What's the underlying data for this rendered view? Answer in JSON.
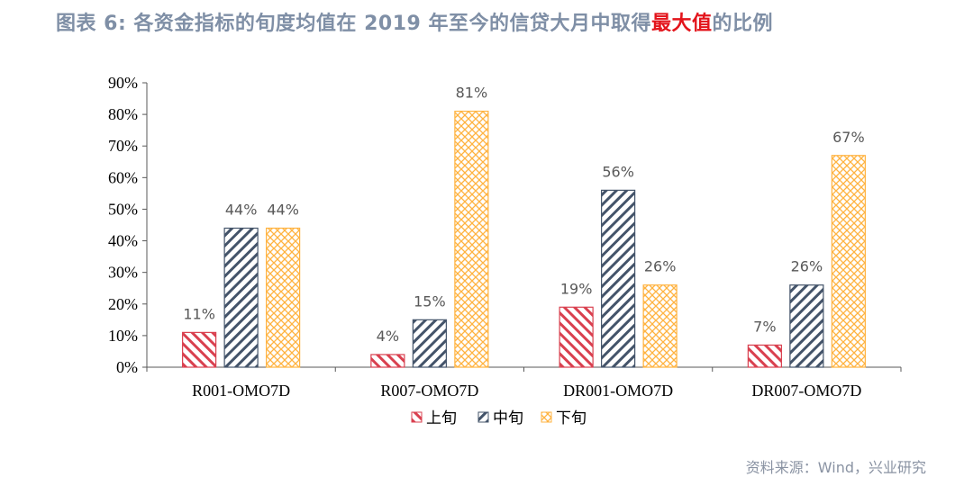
{
  "title": {
    "prefix": "图表 6:  各资金指标的旬度均值在 2019 年至今的信贷大月中取得",
    "highlight": "最大值",
    "suffix": "的比例"
  },
  "source": "资料来源：Wind，兴业研究",
  "chart_data": {
    "type": "bar",
    "categories": [
      "R001-OMO7D",
      "R007-OMO7D",
      "DR001-OMO7D",
      "DR007-OMO7D"
    ],
    "series": [
      {
        "name": "上旬",
        "values": [
          11,
          4,
          19,
          7
        ],
        "color": "#d9404f",
        "pattern": "diagonal-down"
      },
      {
        "name": "中旬",
        "values": [
          44,
          15,
          56,
          26
        ],
        "color": "#44546a",
        "pattern": "diagonal-up"
      },
      {
        "name": "下旬",
        "values": [
          44,
          81,
          26,
          67
        ],
        "color": "#ffb340",
        "pattern": "crosshatch"
      }
    ],
    "ylim": [
      0,
      90
    ],
    "yticks": [
      "0%",
      "10%",
      "20%",
      "30%",
      "40%",
      "50%",
      "60%",
      "70%",
      "80%",
      "90%"
    ],
    "data_labels": [
      [
        "11%",
        "4%",
        "19%",
        "7%"
      ],
      [
        "44%",
        "15%",
        "56%",
        "26%"
      ],
      [
        "44%",
        "81%",
        "26%",
        "67%"
      ]
    ],
    "legend": "bottom",
    "grid": false
  }
}
